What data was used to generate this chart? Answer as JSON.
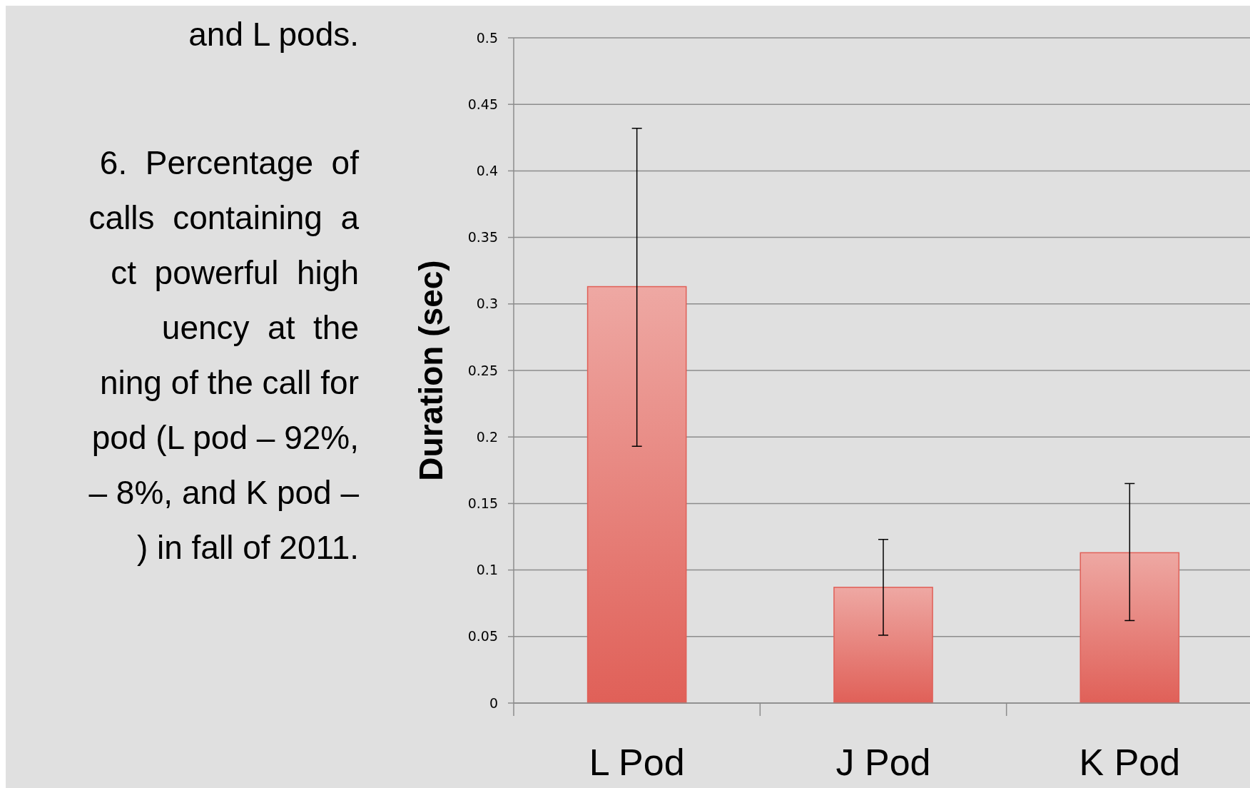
{
  "chart_data": {
    "type": "bar",
    "ylabel": "Duration (sec)",
    "categories": [
      "L Pod",
      "J Pod",
      "K Pod"
    ],
    "values": [
      0.313,
      0.087,
      0.113
    ],
    "errors": [
      [
        0.193,
        0.432
      ],
      [
        0.051,
        0.123
      ],
      [
        0.062,
        0.165
      ]
    ],
    "color": "#e06058",
    "ylim": [
      0,
      0.5
    ],
    "yticks": [
      0,
      0.05,
      0.1,
      0.15,
      0.2,
      0.25,
      0.3,
      0.35,
      0.4,
      0.45,
      0.5
    ],
    "grid": "y",
    "annotations": [
      "and L pods.",
      "6.  Percentage  of",
      "calls  containing  a",
      "ct  powerful  high",
      "uency  at  the",
      "ning of the call for",
      "pod (L pod – 92%,",
      "– 8%, and K pod –",
      ") in fall of 2011."
    ]
  }
}
